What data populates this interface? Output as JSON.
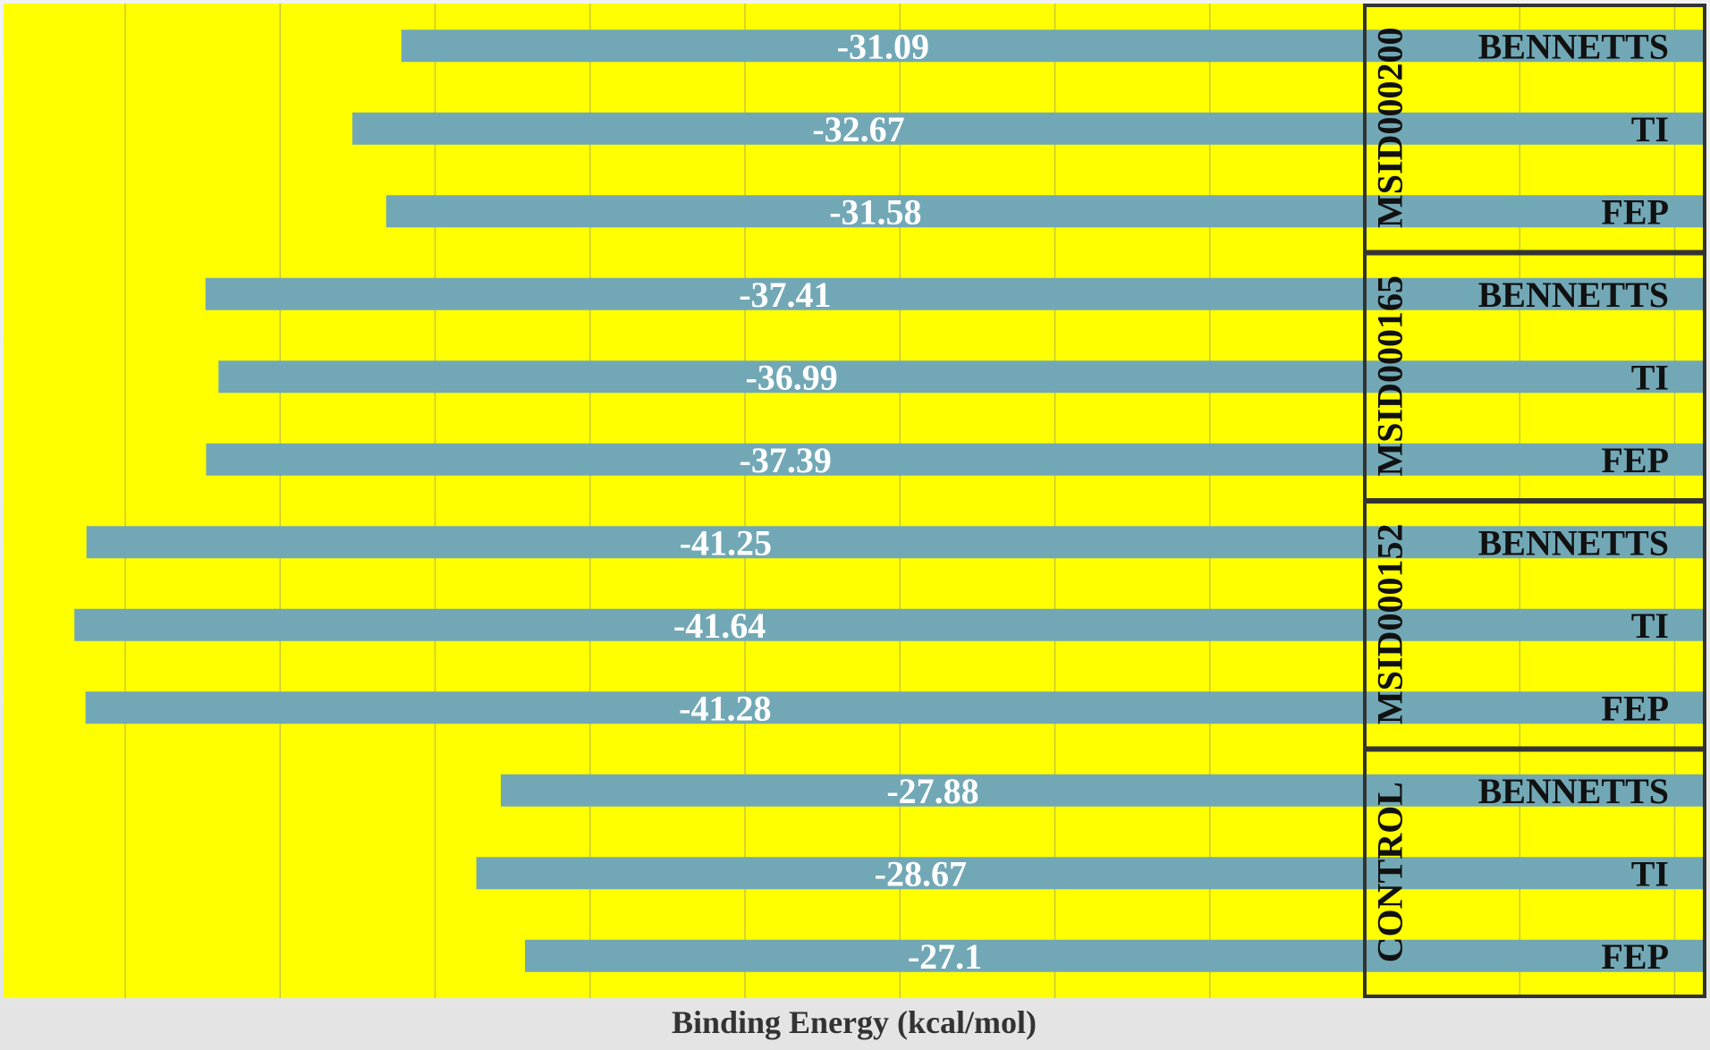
{
  "chart_data": {
    "type": "bar",
    "orientation": "horizontal",
    "xlabel": "Binding Energy (kcal/mol)",
    "background_color": "#ffff00",
    "bar_color": "#72a8b6",
    "x_direction": "reversed",
    "xlim": [
      -45,
      0
    ],
    "gridlines": true,
    "groups": [
      {
        "name": "MSID000200",
        "categories": [
          "BENNETTS",
          "TI",
          "FEP"
        ],
        "values": [
          -31.09,
          -32.67,
          -31.58
        ]
      },
      {
        "name": "MSID000165",
        "categories": [
          "BENNETTS",
          "TI",
          "FEP"
        ],
        "values": [
          -37.41,
          -36.99,
          -37.39
        ]
      },
      {
        "name": "MSID000152",
        "categories": [
          "BENNETTS",
          "TI",
          "FEP"
        ],
        "values": [
          -41.25,
          -41.64,
          -41.28
        ]
      },
      {
        "name": "CONTROL",
        "categories": [
          "BENNETTS",
          "TI",
          "FEP"
        ],
        "values": [
          -27.88,
          -28.67,
          -27.1
        ]
      }
    ]
  }
}
